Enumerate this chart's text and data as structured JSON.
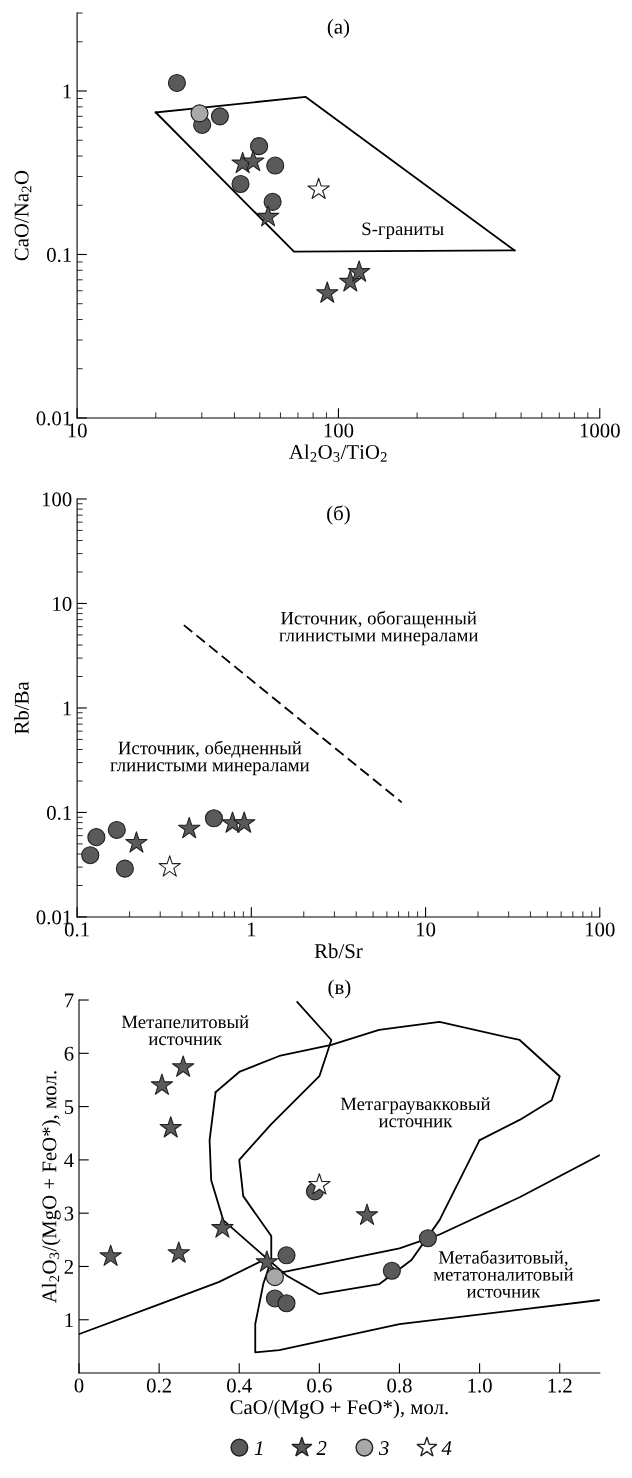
{
  "chart_data": [
    {
      "type": "scatter",
      "title": "(a)",
      "xlabel": "Al$_{2}$O$_{3}$/TiO$_{2}$",
      "ylabel": "CaO/Na$_{2}$O",
      "log": "xy",
      "xlim": [
        10,
        1000
      ],
      "ylim": [
        0.01,
        3
      ],
      "xticks": [
        10,
        100,
        1000
      ],
      "yticks": [
        0.01,
        0.1,
        1
      ],
      "grid": false,
      "legend": false,
      "series": [
        {
          "type": "line",
          "color": "#000000",
          "line_style": "solid",
          "marker": "none",
          "x": [
            20,
            75,
            472
          ],
          "values": [
            0.74,
            0.92,
            0.106
          ]
        },
        {
          "type": "line",
          "color": "#000000",
          "line_style": "solid",
          "marker": "none",
          "x": [
            472,
            67.6,
            20
          ],
          "values": [
            0.106,
            0.104,
            0.74
          ]
        },
        {
          "color": "#5a5a5a",
          "marker": "circle",
          "x": [
            24.1,
            30.1,
            35.2,
            49.7,
            57.3,
            42.2,
            56
          ],
          "values": [
            1.12,
            0.62,
            0.7,
            0.46,
            0.35,
            0.27,
            0.21
          ]
        },
        {
          "color": "#5a5a5a",
          "marker": "star",
          "x": [
            43,
            47.2,
            53.8,
            90.6,
            111,
            120
          ],
          "values": [
            0.36,
            0.37,
            0.17,
            0.058,
            0.068,
            0.078
          ]
        },
        {
          "color": "#a8a8a8",
          "marker": "circle",
          "x": [
            29.4
          ],
          "values": [
            0.73
          ]
        },
        {
          "color": "#ffffff",
          "marker": "star",
          "x": [
            84
          ],
          "values": [
            0.25
          ]
        }
      ],
      "annotations": [
        "S-граниты"
      ]
    },
    {
      "type": "scatter",
      "title": "(б)",
      "xlabel": "Rb/Sr",
      "ylabel": "Rb/Ba",
      "log": "xy",
      "xlim": [
        0.1,
        100
      ],
      "ylim": [
        0.01,
        100
      ],
      "xticks": [
        0.1,
        1,
        10,
        100
      ],
      "yticks": [
        0.01,
        0.1,
        1,
        10,
        100
      ],
      "grid": false,
      "legend": false,
      "series": [
        {
          "type": "line",
          "color": "#000000",
          "line_style": "dashed",
          "marker": "none",
          "x": [
            0.41,
            7.3
          ],
          "values": [
            6.2,
            0.125
          ]
        },
        {
          "color": "#5a5a5a",
          "marker": "circle",
          "x": [
            0.119,
            0.129,
            0.169,
            0.188,
            0.61
          ],
          "values": [
            0.039,
            0.058,
            0.068,
            0.029,
            0.088
          ]
        },
        {
          "color": "#5a5a5a",
          "marker": "star",
          "x": [
            0.219,
            0.44,
            0.78,
            0.91
          ],
          "values": [
            0.051,
            0.07,
            0.079,
            0.079
          ]
        },
        {
          "color": "#ffffff",
          "marker": "star",
          "x": [
            0.34
          ],
          "values": [
            0.03
          ]
        }
      ],
      "annotations": [
        "Источник, обогащенный\nглинистыми минералами",
        "Источник, обедненный\nглинистыми минералами"
      ]
    },
    {
      "type": "scatter",
      "title": "(в)",
      "xlabel": "CaO/(MgO + FeO*), мол.",
      "ylabel": "Al$_{2}$O$_{3}$/(MgO + FeO*), мол.",
      "xlim": [
        0,
        1.3
      ],
      "ylim": [
        0,
        7
      ],
      "xticks": [
        0,
        0.2,
        0.4,
        0.6,
        0.8,
        {
          "value": 1.0,
          "label": "1.0"
        },
        1.2
      ],
      "yticks": [
        1,
        2,
        3,
        4,
        5,
        6,
        7
      ],
      "grid": false,
      "legend": "bottom",
      "series": [
        {
          "type": "line",
          "color": "#000000",
          "line_style": "solid",
          "marker": "none",
          "x": [
            0.545,
            0.63,
            0.6,
            0.48,
            0.4,
            0.41,
            0.48,
            0.48,
            0.46,
            0.44,
            0.44,
            0.5,
            0.8,
            1.3
          ],
          "values": [
            6.96,
            6.25,
            5.57,
            4.67,
            4.0,
            3.32,
            2.57,
            2.12,
            1.67,
            0.92,
            0.39,
            0.43,
            0.92,
            1.37
          ]
        },
        {
          "type": "line",
          "color": "#000000",
          "line_style": "solid",
          "marker": "none",
          "x": [
            0.341,
            0.4,
            0.5,
            0.63,
            0.749,
            0.9,
            1.1,
            1.2,
            1.18,
            1.1,
            1.0
          ],
          "values": [
            5.27,
            5.65,
            5.95,
            6.16,
            6.44,
            6.59,
            6.25,
            5.57,
            5.12,
            4.75,
            4.37
          ]
        },
        {
          "type": "line",
          "color": "#000000",
          "line_style": "solid",
          "marker": "none",
          "x": [
            1.0,
            0.95,
            0.9,
            0.83,
            0.75,
            0.6,
            0.52,
            0.44,
            0.36,
            0.33,
            0.326,
            0.341
          ],
          "values": [
            4.37,
            3.62,
            2.87,
            2.12,
            1.67,
            1.48,
            1.82,
            2.34,
            2.87,
            3.62,
            4.37,
            5.27
          ]
        },
        {
          "type": "line",
          "color": "#000000",
          "line_style": "solid",
          "marker": "none",
          "x": [
            0,
            0.2,
            0.35,
            0.46,
            0.5,
            0.8,
            0.9,
            1.1,
            1.3
          ],
          "values": [
            0.73,
            1.29,
            1.71,
            2.12,
            1.88,
            2.34,
            2.6,
            3.3,
            4.09
          ]
        },
        {
          "name": "1",
          "color": "#5a5a5a",
          "marker": "circle",
          "x": [
            0.589,
            0.518,
            0.489,
            0.518,
            0.781,
            0.871
          ],
          "values": [
            3.41,
            2.21,
            1.4,
            1.31,
            1.92,
            2.53
          ]
        },
        {
          "name": "2",
          "color": "#5a5a5a",
          "marker": "star",
          "x": [
            0.079,
            0.207,
            0.26,
            0.229,
            0.249,
            0.358,
            0.469,
            0.719
          ],
          "values": [
            2.19,
            5.4,
            5.74,
            4.6,
            2.25,
            2.72,
            2.08,
            2.96
          ]
        },
        {
          "name": "3",
          "color": "#a8a8a8",
          "marker": "circle",
          "x": [
            0.489
          ],
          "values": [
            1.8
          ]
        },
        {
          "name": "4",
          "color": "#ffffff",
          "marker": "star",
          "x": [
            0.6
          ],
          "values": [
            3.53
          ]
        }
      ],
      "annotations": [
        "Метапелитовый\nисточник",
        "Метаграувакковый\nисточник",
        "Метабазитовый,\nметатоналитовый\nисточник"
      ]
    }
  ]
}
